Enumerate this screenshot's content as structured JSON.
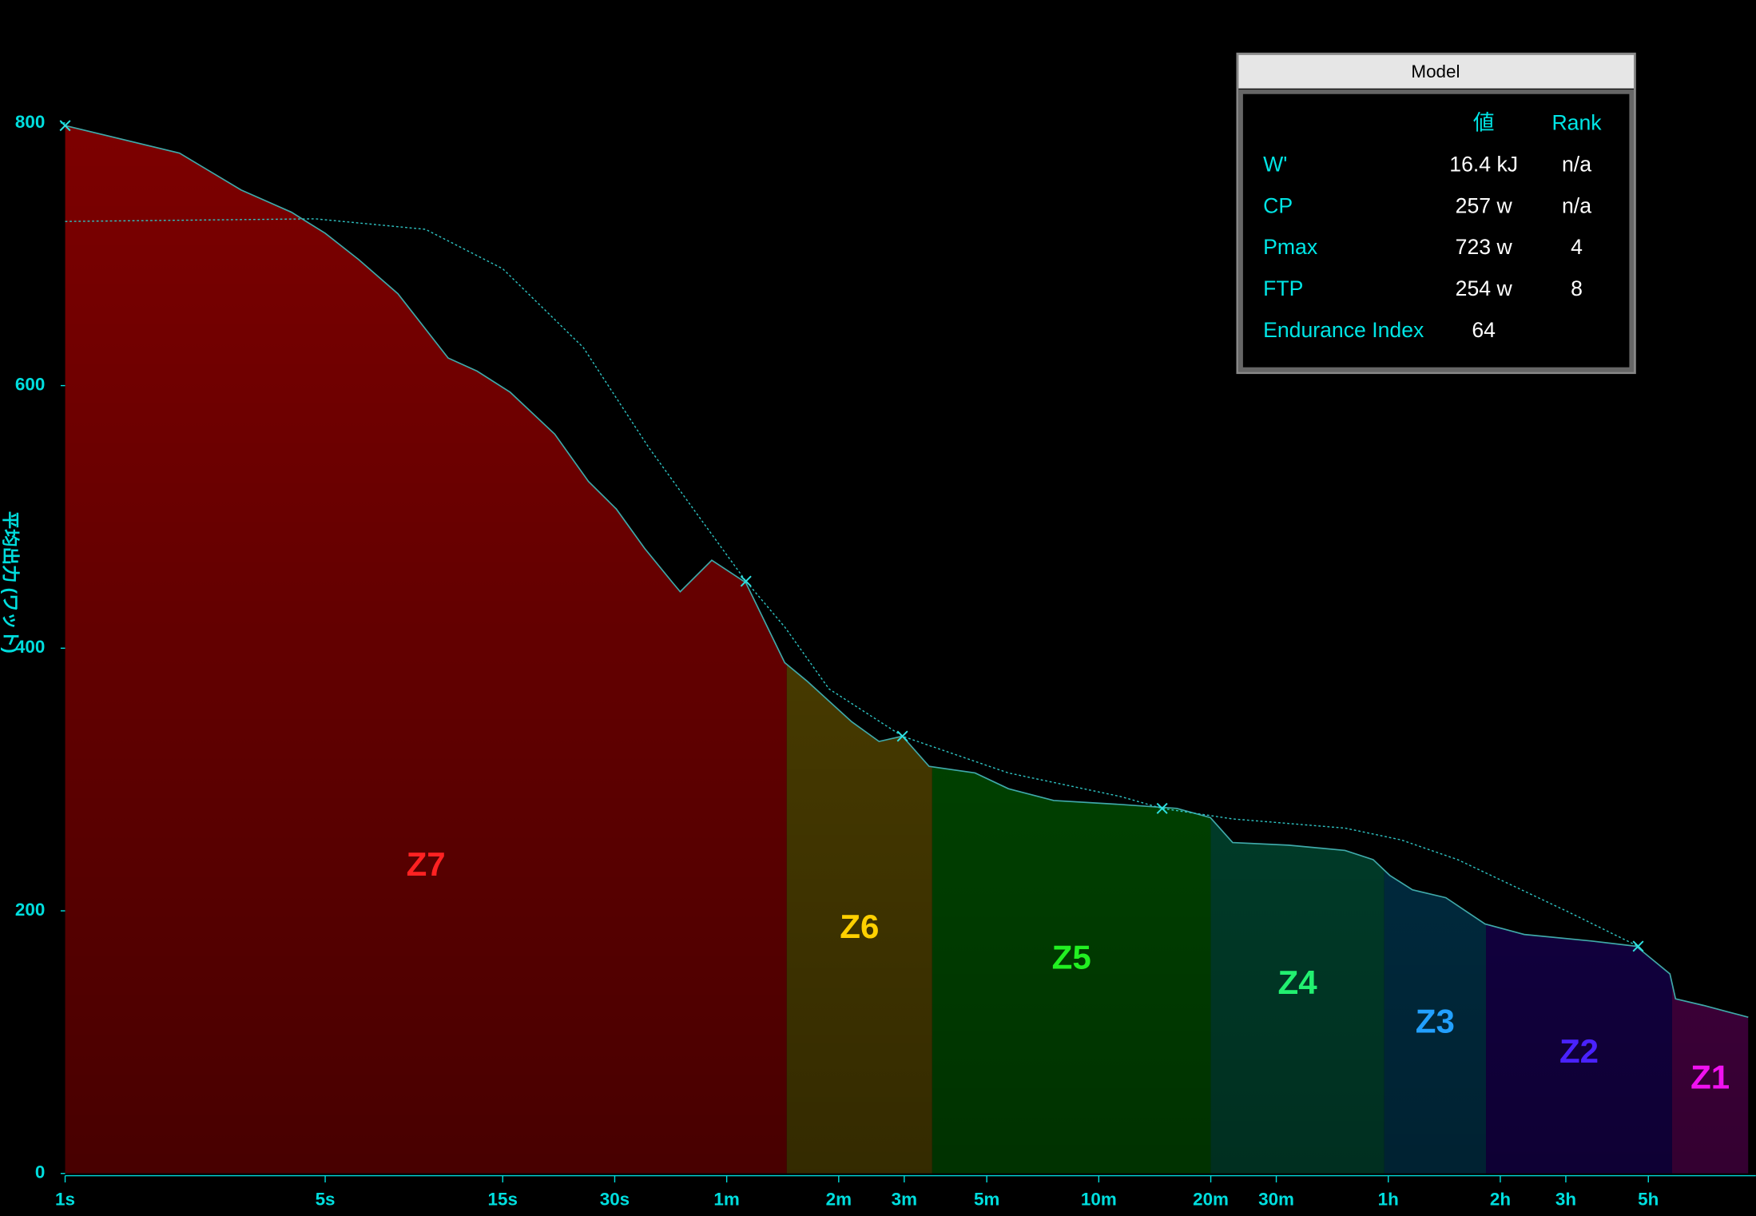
{
  "chart_data": {
    "type": "line",
    "y_label": "平均出力 (ワット)",
    "log_x": true,
    "x": [
      1,
      2.03,
      2.97,
      4.06,
      5,
      6.15,
      7.84,
      10.7,
      12.8,
      15.7,
      20.7,
      25.5,
      30.3,
      36.1,
      42.9,
      45,
      54.7,
      67.5,
      85.9,
      98.6,
      130,
      154,
      178,
      210,
      279,
      343,
      454,
      688,
      972,
      1197,
      1374,
      1945,
      2754,
      3278,
      3633,
      4180,
      5140,
      6550,
      8350,
      12660,
      16700,
      20570,
      21300,
      25300,
      33400
    ],
    "values": [
      798,
      777,
      749,
      732,
      716,
      696,
      670,
      621,
      611,
      595,
      563,
      527,
      506,
      476,
      450,
      443,
      467,
      450,
      389,
      375,
      344,
      329,
      333,
      310,
      305,
      293,
      284,
      281,
      278,
      271,
      252,
      250,
      246,
      239,
      227,
      216,
      210,
      190,
      182,
      177,
      173,
      152,
      133,
      128,
      119
    ],
    "line_color": "#3fa9a9",
    "model": {
      "color": "#2ec4c4",
      "x": [
        1,
        4.7,
        9.3,
        15,
        24.7,
        37,
        52.7,
        67.6,
        86,
        113,
        178,
        343,
        688,
        888,
        1374,
        2754,
        3900,
        5530,
        11000,
        16900
      ],
      "values": [
        725,
        727,
        719,
        689,
        629,
        553,
        493,
        451,
        416,
        369,
        333,
        305,
        287,
        278,
        270,
        263,
        254,
        239,
        199,
        173
      ]
    },
    "points": {
      "color": "#2ee0e0",
      "x": [
        1,
        67.6,
        178,
        888,
        16900
      ],
      "values": [
        798,
        451,
        333,
        278,
        173
      ]
    },
    "zones": [
      {
        "name": "Z7",
        "from": 1,
        "to": 87,
        "color": "#820000",
        "label_color": "#ff2222"
      },
      {
        "name": "Z6",
        "from": 87,
        "to": 214,
        "color": "#5e4d00",
        "label_color": "#ffd000"
      },
      {
        "name": "Z5",
        "from": 214,
        "to": 1200,
        "color": "#005a00",
        "label_color": "#22f022"
      },
      {
        "name": "Z4",
        "from": 1200,
        "to": 3510,
        "color": "#00553a",
        "label_color": "#22f070"
      },
      {
        "name": "Z3",
        "from": 3510,
        "to": 6590,
        "color": "#003d5a",
        "label_color": "#22a0ff"
      },
      {
        "name": "Z2",
        "from": 6590,
        "to": 20850,
        "color": "#1a005e",
        "label_color": "#4a22ff"
      },
      {
        "name": "Z1",
        "from": 20850,
        "to": 33400,
        "color": "#5e0058",
        "label_color": "#f012f0"
      }
    ],
    "xlim": [
      1,
      35000
    ],
    "ylim": [
      0,
      880
    ],
    "xticks": [
      {
        "value": 1,
        "label": "1s"
      },
      {
        "value": 5,
        "label": "5s"
      },
      {
        "value": 15,
        "label": "15s"
      },
      {
        "value": 30,
        "label": "30s"
      },
      {
        "value": 60,
        "label": "1m"
      },
      {
        "value": 120,
        "label": "2m"
      },
      {
        "value": 180,
        "label": "3m"
      },
      {
        "value": 300,
        "label": "5m"
      },
      {
        "value": 600,
        "label": "10m"
      },
      {
        "value": 1200,
        "label": "20m"
      },
      {
        "value": 1800,
        "label": "30m"
      },
      {
        "value": 3600,
        "label": "1h"
      },
      {
        "value": 7200,
        "label": "2h"
      },
      {
        "value": 10800,
        "label": "3h"
      },
      {
        "value": 18000,
        "label": "5h"
      }
    ],
    "yticks": [
      0,
      200,
      400,
      600,
      800
    ],
    "axis_color": "#00dede"
  },
  "model_table": {
    "title": "Model",
    "header": [
      "値",
      "Rank"
    ],
    "rows": [
      [
        "W'",
        "16.4 kJ",
        "n/a"
      ],
      [
        "CP",
        "257 w",
        "n/a"
      ],
      [
        "Pmax",
        "723 w",
        "4"
      ],
      [
        "FTP",
        "254 w",
        "8"
      ],
      [
        "Endurance Index",
        "64"
      ]
    ]
  }
}
